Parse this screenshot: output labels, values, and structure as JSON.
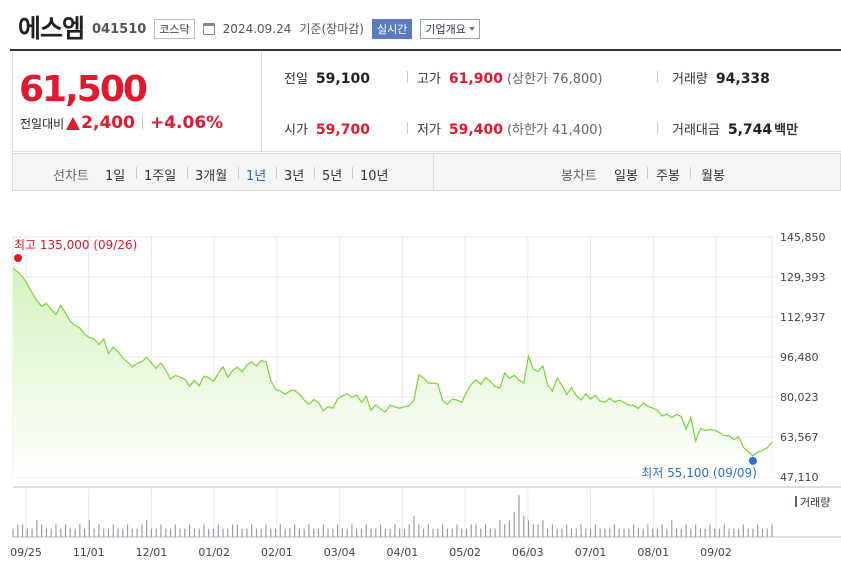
{
  "header": {
    "name": "에스엠",
    "code": "041510",
    "market": "코스닥",
    "date": "2024.09.24",
    "basis": "기준(장마감)",
    "realtime_label": "실시간",
    "company_label": "기업개요"
  },
  "quote": {
    "price": "61,500",
    "change_label": "전일대비",
    "change_amount": "2,400",
    "change_percent": "+4.06%",
    "prev_close_label": "전일",
    "prev_close": "59,100",
    "open_label": "시가",
    "open": "59,700",
    "high_label": "고가",
    "high": "61,900",
    "upper_limit": "(상한가 76,800)",
    "low_label": "저가",
    "low": "59,400",
    "lower_limit": "(하한가 41,400)",
    "volume_label": "거래량",
    "volume": "94,338",
    "trade_value_label": "거래대금",
    "trade_value": "5,744",
    "trade_value_unit": "백만"
  },
  "periods": {
    "line_label": "선차트",
    "line_items": [
      "1일",
      "1주일",
      "3개월",
      "1년",
      "3년",
      "5년",
      "10년"
    ],
    "active_index": 3,
    "candle_label": "봉차트",
    "candle_items": [
      "일봉",
      "주봉",
      "월봉"
    ]
  },
  "chart_data": {
    "type": "area",
    "x_tick_labels": [
      "09/25",
      "11/01",
      "12/01",
      "01/02",
      "02/01",
      "03/04",
      "04/01",
      "05/02",
      "06/03",
      "07/01",
      "08/01",
      "09/02"
    ],
    "y_tick_labels": [
      "145,850",
      "129,393",
      "112,937",
      "96,480",
      "80,023",
      "63,567",
      "47,110"
    ],
    "ylim": [
      47110,
      145850
    ],
    "grid": true,
    "max_annotation": "최고 135,000 (09/26)",
    "min_annotation": "최저 55,100 (09/09)",
    "volume_label": "거래량",
    "colors": {
      "line": "#7bd23a",
      "fill_top": "#d6f3c0",
      "fill_bottom": "#ffffff",
      "grid": "#e8e8e8",
      "max_marker": "#e2192e",
      "min_marker": "#2f6fd0",
      "volume_bar": "#9a9ab4"
    },
    "series": [
      {
        "values": [
          133000,
          131500,
          129500,
          126500,
          122800,
          119500,
          117400,
          118500,
          116200,
          114000,
          117700,
          114500,
          111200,
          109500,
          108400,
          105800,
          104500,
          103900,
          101600,
          103900,
          97900,
          100500,
          98700,
          96100,
          94400,
          92400,
          93900,
          94600,
          96400,
          94000,
          91800,
          94000,
          91100,
          87400,
          88900,
          88200,
          87300,
          84500,
          86900,
          84600,
          88600,
          88100,
          86500,
          89800,
          92400,
          88200,
          90800,
          92400,
          90400,
          93200,
          94500,
          92800,
          95000,
          94500,
          86800,
          83200,
          82500,
          81200,
          82500,
          82900,
          81100,
          78800,
          77000,
          79000,
          77700,
          74400,
          76100,
          75400,
          79200,
          80500,
          81400,
          79900,
          80800,
          77900,
          80300,
          74600,
          76800,
          75000,
          73900,
          76700,
          76000,
          75400,
          76000,
          76500,
          78900,
          89100,
          87900,
          85700,
          85800,
          85400,
          78600,
          77000,
          79200,
          78800,
          77900,
          81900,
          85300,
          87100,
          85200,
          88100,
          86400,
          84400,
          83700,
          90000,
          87700,
          89000,
          86900,
          85800,
          96800,
          91400,
          90600,
          92800,
          85000,
          82400,
          87700,
          84800,
          81000,
          83900,
          80600,
          78800,
          81400,
          79100,
          80800,
          78300,
          77900,
          79500,
          77900,
          78700,
          77800,
          76600,
          76700,
          75300,
          77500,
          76200,
          75500,
          74600,
          72200,
          73000,
          71500,
          72900,
          72000,
          66800,
          71600,
          61900,
          67100,
          66300,
          66700,
          66300,
          65400,
          64100,
          64200,
          62500,
          63700,
          59300,
          57600,
          55800,
          57400,
          58100,
          59100,
          61500
        ]
      }
    ],
    "volume": [
      0.2,
      0.3,
      0.3,
      0.2,
      0.2,
      0.4,
      0.3,
      0.2,
      0.2,
      0.3,
      0.2,
      0.3,
      0.2,
      0.2,
      0.3,
      0.2,
      0.4,
      0.2,
      0.3,
      0.2,
      0.2,
      0.3,
      0.2,
      0.2,
      0.3,
      0.2,
      0.2,
      0.3,
      0.4,
      0.2,
      0.2,
      0.3,
      0.2,
      0.2,
      0.3,
      0.2,
      0.2,
      0.3,
      0.2,
      0.2,
      0.3,
      0.2,
      0.2,
      0.3,
      0.2,
      0.2,
      0.3,
      0.3,
      0.2,
      0.2,
      0.3,
      0.2,
      0.2,
      0.3,
      0.2,
      0.2,
      0.3,
      0.2,
      0.2,
      0.3,
      0.2,
      0.2,
      0.3,
      0.2,
      0.2,
      0.3,
      0.2,
      0.2,
      0.3,
      0.2,
      0.2,
      0.3,
      0.2,
      0.2,
      0.3,
      0.2,
      0.2,
      0.3,
      0.2,
      0.2,
      0.3,
      0.2,
      0.2,
      0.3,
      0.5,
      0.3,
      0.2,
      0.3,
      0.2,
      0.2,
      0.3,
      0.2,
      0.2,
      0.3,
      0.2,
      0.2,
      0.3,
      0.3,
      0.2,
      0.3,
      0.2,
      0.2,
      0.4,
      0.3,
      0.4,
      0.6,
      1.0,
      0.5,
      0.4,
      0.3,
      0.3,
      0.4,
      0.2,
      0.3,
      0.2,
      0.2,
      0.3,
      0.2,
      0.2,
      0.3,
      0.2,
      0.2,
      0.3,
      0.2,
      0.2,
      0.2,
      0.3,
      0.2,
      0.2,
      0.2,
      0.3,
      0.2,
      0.2,
      0.3,
      0.2,
      0.2,
      0.3,
      0.2,
      0.4,
      0.2,
      0.2,
      0.3,
      0.2,
      0.3,
      0.2,
      0.2,
      0.3,
      0.2,
      0.2,
      0.3,
      0.2,
      0.2,
      0.2,
      0.3,
      0.2,
      0.2,
      0.3,
      0.2,
      0.2,
      0.3
    ]
  }
}
